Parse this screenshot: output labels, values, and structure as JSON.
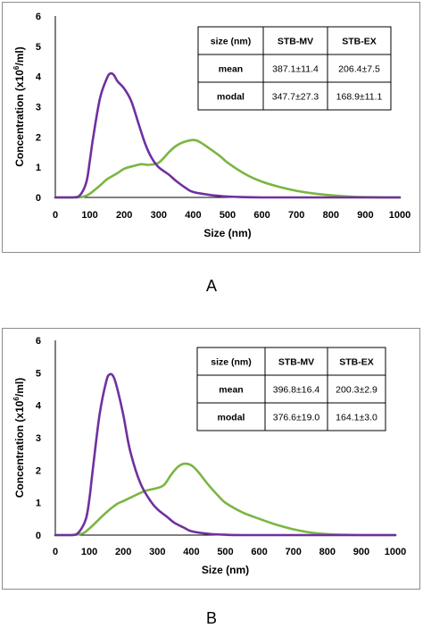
{
  "colors": {
    "stb_mv": "#7ab642",
    "stb_ex": "#7030a0"
  },
  "panels": [
    {
      "label": "A",
      "table": {
        "header": [
          "size (nm)",
          "STB-MV",
          "STB-EX"
        ],
        "rows": [
          [
            "mean",
            "387.1±11.4",
            "206.4±7.5"
          ],
          [
            "modal",
            "347.7±27.3",
            "168.9±11.1"
          ]
        ]
      }
    },
    {
      "label": "B",
      "table": {
        "header": [
          "size (nm)",
          "STB-MV",
          "STB-EX"
        ],
        "rows": [
          [
            "mean",
            "396.8±16.4",
            "200.3±2.9"
          ],
          [
            "modal",
            "376.6±19.0",
            "164.1±3.0"
          ]
        ]
      }
    }
  ],
  "chart_data": [
    {
      "type": "line",
      "xlabel": "Size (nm)",
      "ylabel": "Concentration (x10^6/ml)",
      "ylabel_parts": {
        "before": "Concentration (x10",
        "sup": "6",
        "after": "/ml)"
      },
      "xlim": [
        0,
        1000
      ],
      "ylim": [
        0,
        6
      ],
      "xticks": [
        0,
        100,
        200,
        300,
        400,
        500,
        600,
        700,
        800,
        900,
        1000
      ],
      "yticks": [
        0,
        1,
        2,
        3,
        4,
        5,
        6
      ],
      "grid": false,
      "legend": "none",
      "series": [
        {
          "name": "STB-MV",
          "color": "#7ab642",
          "x": [
            0,
            50,
            80,
            100,
            130,
            150,
            180,
            200,
            230,
            250,
            270,
            300,
            330,
            350,
            370,
            400,
            420,
            450,
            480,
            500,
            550,
            600,
            650,
            700,
            750,
            800,
            850,
            900,
            950,
            1000
          ],
          "y": [
            0,
            0,
            0.02,
            0.12,
            0.4,
            0.6,
            0.8,
            0.95,
            1.05,
            1.1,
            1.08,
            1.15,
            1.5,
            1.7,
            1.82,
            1.9,
            1.83,
            1.6,
            1.35,
            1.15,
            0.78,
            0.52,
            0.35,
            0.22,
            0.13,
            0.07,
            0.03,
            0.01,
            0,
            0
          ]
        },
        {
          "name": "STB-EX",
          "color": "#7030a0",
          "x": [
            0,
            50,
            70,
            90,
            100,
            110,
            130,
            150,
            160,
            170,
            180,
            200,
            220,
            240,
            260,
            280,
            300,
            330,
            350,
            380,
            400,
            450,
            500,
            550,
            600,
            700,
            1000
          ],
          "y": [
            0,
            0,
            0.05,
            0.5,
            1.2,
            2.0,
            3.3,
            3.95,
            4.1,
            4.05,
            3.85,
            3.6,
            3.2,
            2.5,
            1.8,
            1.3,
            1.0,
            0.75,
            0.55,
            0.3,
            0.18,
            0.08,
            0.03,
            0.01,
            0,
            0,
            0
          ]
        }
      ]
    },
    {
      "type": "line",
      "xlabel": "Size (nm)",
      "ylabel": "Concentration (x10^6/ml)",
      "ylabel_parts": {
        "before": "Concentration (x10",
        "sup": "6",
        "after": "/ml)"
      },
      "xlim": [
        0,
        1000
      ],
      "ylim": [
        0,
        6
      ],
      "xticks": [
        0,
        100,
        200,
        300,
        400,
        500,
        600,
        700,
        800,
        900,
        1000
      ],
      "yticks": [
        0,
        1,
        2,
        3,
        4,
        5,
        6
      ],
      "grid": false,
      "legend": "none",
      "series": [
        {
          "name": "STB-MV",
          "color": "#7ab642",
          "x": [
            0,
            50,
            80,
            100,
            130,
            150,
            180,
            200,
            230,
            250,
            270,
            300,
            320,
            340,
            360,
            380,
            400,
            420,
            450,
            480,
            500,
            550,
            600,
            650,
            700,
            750,
            800,
            850,
            900,
            1000
          ],
          "y": [
            0,
            0,
            0.05,
            0.2,
            0.5,
            0.7,
            0.95,
            1.05,
            1.2,
            1.3,
            1.38,
            1.45,
            1.55,
            1.85,
            2.1,
            2.2,
            2.15,
            1.95,
            1.55,
            1.2,
            1.0,
            0.7,
            0.5,
            0.32,
            0.18,
            0.08,
            0.03,
            0.01,
            0,
            0
          ]
        },
        {
          "name": "STB-EX",
          "color": "#7030a0",
          "x": [
            0,
            50,
            70,
            90,
            100,
            110,
            130,
            150,
            160,
            170,
            180,
            200,
            220,
            250,
            280,
            300,
            330,
            350,
            380,
            400,
            450,
            500,
            550,
            600,
            700,
            1000
          ],
          "y": [
            0,
            0,
            0.1,
            0.5,
            1.1,
            2.0,
            3.7,
            4.75,
            4.95,
            4.9,
            4.6,
            3.7,
            2.6,
            1.6,
            1.05,
            0.8,
            0.55,
            0.38,
            0.22,
            0.12,
            0.04,
            0.01,
            0,
            0,
            0,
            0
          ]
        }
      ]
    }
  ]
}
